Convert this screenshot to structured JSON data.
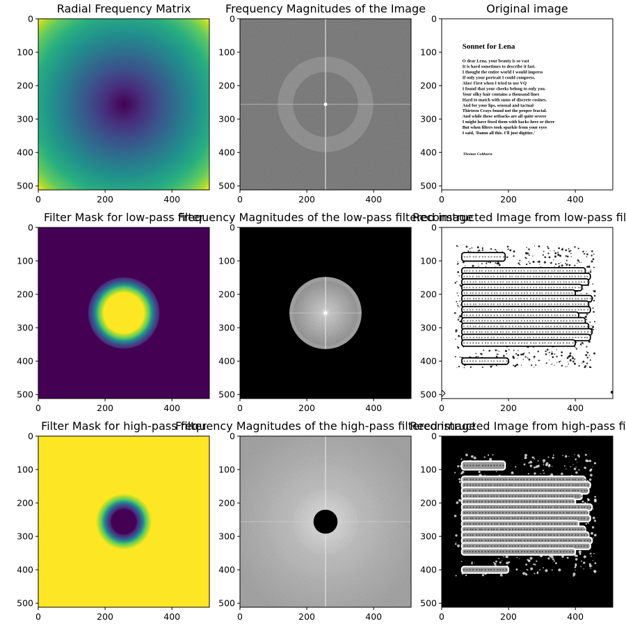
{
  "figure": {
    "rows": 3,
    "cols": 3,
    "colors": {
      "viridis_dark": "#440154",
      "viridis_mid": "#21918c",
      "viridis_light": "#fde725",
      "background": "#ffffff",
      "axis": "#000000"
    }
  },
  "chart_data": [
    {
      "type": "heatmap",
      "title": "Radial Frequency Matrix",
      "render": "radial",
      "colormap": "viridis",
      "image_size": [
        512,
        512
      ],
      "xlim": [
        0,
        512
      ],
      "ylim": [
        512,
        0
      ],
      "x_ticks": [
        0,
        200,
        400
      ],
      "y_ticks": [
        0,
        100,
        200,
        300,
        400,
        500
      ]
    },
    {
      "type": "heatmap",
      "title": "Frequency Magnitudes of the Image",
      "render": "spectrum",
      "colormap": "gray",
      "image_size": [
        512,
        512
      ],
      "xlim": [
        0,
        512
      ],
      "ylim": [
        512,
        0
      ],
      "x_ticks": [
        0,
        200,
        400
      ],
      "y_ticks": [
        0,
        100,
        200,
        300,
        400,
        500
      ]
    },
    {
      "type": "heatmap",
      "title": "Original image",
      "render": "document",
      "colormap": "gray",
      "image_size": [
        512,
        512
      ],
      "xlim": [
        0,
        512
      ],
      "ylim": [
        512,
        0
      ],
      "x_ticks": [
        0,
        200,
        400
      ],
      "y_ticks": [
        0,
        100,
        200,
        300,
        400,
        500
      ],
      "document": {
        "heading": "Sonnet for Lena",
        "lines": [
          "O dear Lena, your beauty is so vast",
          "It is hard sometimes to describe it fast.",
          "I thought the entire world I would impress",
          "If only your portrait I could compress.",
          "Alas! First when I tried to use VQ",
          "I found that your cheeks belong to only you.",
          "Your silky hair contains a thousand lines",
          "Hard to match with sums of discrete cosines.",
          "And for your lips, sensual and tactual",
          "Thirteen Crays found not the proper fractal.",
          "And while these setbacks are all quite severe",
          "I might have fixed them with hacks here or there",
          "But when filters took sparkle from your eyes",
          "I said, 'Damn all this. I'll just digitize.'"
        ],
        "signature": "Thomas Colthurst"
      }
    },
    {
      "type": "heatmap",
      "title": "Filter Mask for low-pass filter",
      "render": "mask_low",
      "colormap": "viridis",
      "image_size": [
        512,
        512
      ],
      "xlim": [
        0,
        512
      ],
      "ylim": [
        512,
        0
      ],
      "x_ticks": [
        0,
        200,
        400
      ],
      "y_ticks": [
        0,
        100,
        200,
        300,
        400,
        500
      ],
      "mask": {
        "center": [
          256,
          256
        ],
        "pass_radius": 60,
        "stop_radius": 108
      }
    },
    {
      "type": "heatmap",
      "title": "Frequency Magnitudes of the low-pass filtered image",
      "render": "spectrum_low",
      "colormap": "gray",
      "image_size": [
        512,
        512
      ],
      "xlim": [
        0,
        512
      ],
      "ylim": [
        512,
        0
      ],
      "x_ticks": [
        0,
        200,
        400
      ],
      "y_ticks": [
        0,
        100,
        200,
        300,
        400,
        500
      ],
      "mask": {
        "center": [
          256,
          256
        ],
        "radius": 108
      }
    },
    {
      "type": "heatmap",
      "title": "Reconstructed Image from low-pass filter",
      "render": "recon_low",
      "colormap": "gray",
      "image_size": [
        512,
        512
      ],
      "xlim": [
        0,
        512
      ],
      "ylim": [
        512,
        0
      ],
      "x_ticks": [
        0,
        200,
        400
      ],
      "y_ticks": [
        0,
        100,
        200,
        300,
        400,
        500
      ]
    },
    {
      "type": "heatmap",
      "title": "Filter Mask for high-pass filter",
      "render": "mask_high",
      "colormap": "viridis",
      "image_size": [
        512,
        512
      ],
      "xlim": [
        0,
        512
      ],
      "ylim": [
        512,
        0
      ],
      "x_ticks": [
        0,
        200,
        400
      ],
      "y_ticks": [
        0,
        100,
        200,
        300,
        400,
        500
      ],
      "mask": {
        "center": [
          256,
          256
        ],
        "stop_radius": 36,
        "pass_radius": 84
      }
    },
    {
      "type": "heatmap",
      "title": "Frequency Magnitudes of the high-pass filtered image",
      "render": "spectrum_high",
      "colormap": "gray",
      "image_size": [
        512,
        512
      ],
      "xlim": [
        0,
        512
      ],
      "ylim": [
        512,
        0
      ],
      "x_ticks": [
        0,
        200,
        400
      ],
      "y_ticks": [
        0,
        100,
        200,
        300,
        400,
        500
      ],
      "mask": {
        "center": [
          256,
          256
        ],
        "radius": 36
      }
    },
    {
      "type": "heatmap",
      "title": "Reconstructed Image from high-pass filter",
      "render": "recon_high",
      "colormap": "gray",
      "image_size": [
        512,
        512
      ],
      "xlim": [
        0,
        512
      ],
      "ylim": [
        512,
        0
      ],
      "x_ticks": [
        0,
        200,
        400
      ],
      "y_ticks": [
        0,
        100,
        200,
        300,
        400,
        500
      ]
    }
  ]
}
